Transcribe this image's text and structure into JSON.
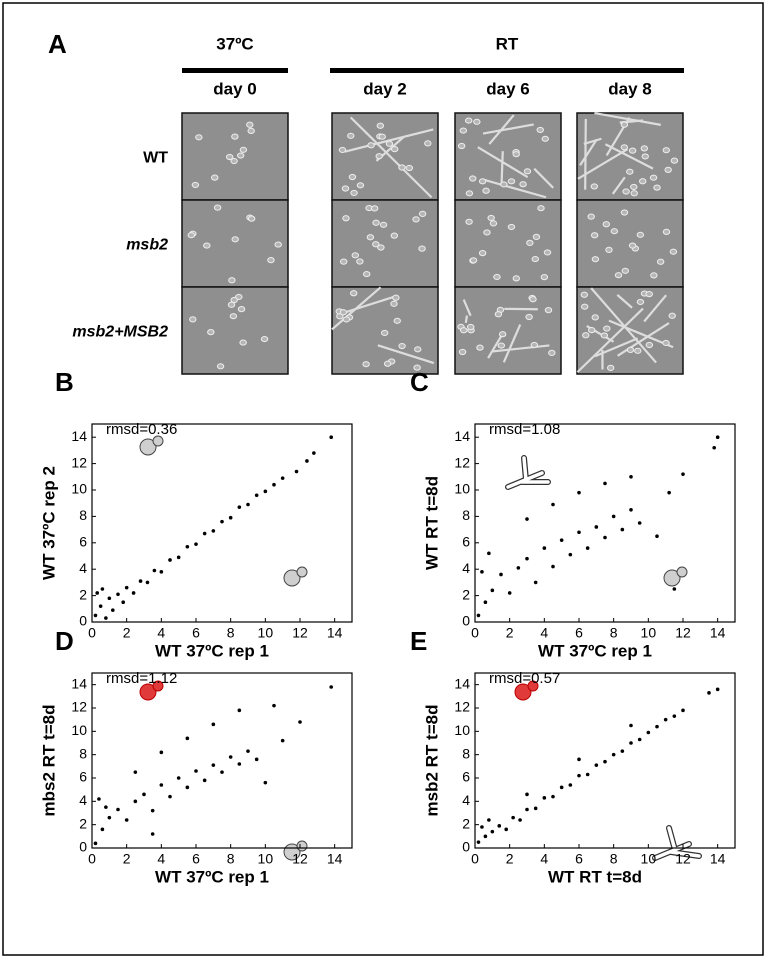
{
  "panel_a": {
    "label": "A",
    "groups": [
      "37ºC",
      "RT"
    ],
    "columns": [
      "day 0",
      "day 2",
      "day 6",
      "day 8"
    ],
    "rows": [
      "WT",
      "msb2",
      "msb2+MSB2"
    ]
  },
  "chart_data": [
    {
      "type": "scatter",
      "label": "B",
      "annotation": "rmsd=0.36",
      "x_label": "WT 37ºC rep 1",
      "y_label": "WT 37ºC rep 2",
      "xlim": [
        0,
        15
      ],
      "ylim": [
        0,
        15
      ],
      "xticks": [
        0,
        2,
        4,
        6,
        8,
        10,
        12,
        14
      ],
      "yticks": [
        0,
        2,
        4,
        6,
        8,
        10,
        12,
        14
      ],
      "color": "#000000",
      "x": [
        0.2,
        0.3,
        0.5,
        0.6,
        0.8,
        1.0,
        1.2,
        1.5,
        1.8,
        2.0,
        2.4,
        2.8,
        3.2,
        3.6,
        4.0,
        4.5,
        5.0,
        5.5,
        6.0,
        6.5,
        7.0,
        7.5,
        8.0,
        8.5,
        9.0,
        9.5,
        10.0,
        10.5,
        11.0,
        11.8,
        12.4,
        12.8,
        13.8
      ],
      "y": [
        0.5,
        2.2,
        1.2,
        2.5,
        0.3,
        1.8,
        0.9,
        2.1,
        1.5,
        2.6,
        2.2,
        3.1,
        3.0,
        3.9,
        3.8,
        4.7,
        4.9,
        5.7,
        5.9,
        6.7,
        6.9,
        7.6,
        7.9,
        8.7,
        8.9,
        9.6,
        9.9,
        10.4,
        10.9,
        11.4,
        12.2,
        12.8,
        14.0
      ]
    },
    {
      "type": "scatter",
      "label": "C",
      "annotation": "rmsd=1.08",
      "x_label": "WT 37ºC rep 1",
      "y_label": "WT RT  t=8d",
      "xlim": [
        0,
        15
      ],
      "ylim": [
        0,
        15
      ],
      "xticks": [
        0,
        2,
        4,
        6,
        8,
        10,
        12,
        14
      ],
      "yticks": [
        0,
        2,
        4,
        6,
        8,
        10,
        12,
        14
      ],
      "color": "#000000",
      "x": [
        0.2,
        0.4,
        0.6,
        0.8,
        1.0,
        1.5,
        2.0,
        2.5,
        3.0,
        3.5,
        4.0,
        4.5,
        5.0,
        5.5,
        6.0,
        6.5,
        7.0,
        7.5,
        8.0,
        8.5,
        9.0,
        9.5,
        3.0,
        4.5,
        6.0,
        7.5,
        9.0,
        10.5,
        11.2,
        12.0,
        14.0,
        13.8,
        11.5
      ],
      "y": [
        0.5,
        3.8,
        1.5,
        5.2,
        2.4,
        3.6,
        2.2,
        4.1,
        4.8,
        3.0,
        5.6,
        4.2,
        6.2,
        5.1,
        6.8,
        5.6,
        7.2,
        6.4,
        8.0,
        7.0,
        8.5,
        7.5,
        7.8,
        8.9,
        9.8,
        10.5,
        11.0,
        6.5,
        9.8,
        11.2,
        14.0,
        13.2,
        2.5
      ]
    },
    {
      "type": "scatter",
      "label": "D",
      "annotation": "rmsd=1.12",
      "x_label": "WT 37ºC rep 1",
      "y_label": "mbs2 RT  t=8d",
      "xlim": [
        0,
        15
      ],
      "ylim": [
        0,
        15
      ],
      "xticks": [
        0,
        2,
        4,
        6,
        8,
        10,
        12,
        14
      ],
      "yticks": [
        0,
        2,
        4,
        6,
        8,
        10,
        12,
        14
      ],
      "color": "#000000",
      "x": [
        0.2,
        0.4,
        0.6,
        0.8,
        1.0,
        1.5,
        2.0,
        2.5,
        3.0,
        3.5,
        4.0,
        4.5,
        5.0,
        5.5,
        6.0,
        6.5,
        7.0,
        7.5,
        8.0,
        8.5,
        9.0,
        9.5,
        2.5,
        4.0,
        5.5,
        7.0,
        8.5,
        10.0,
        11.0,
        12.0,
        13.8,
        10.5,
        3.5
      ],
      "y": [
        0.4,
        4.2,
        1.6,
        3.5,
        2.6,
        3.3,
        2.4,
        4.0,
        4.6,
        3.2,
        5.4,
        4.4,
        6.0,
        5.2,
        6.6,
        5.8,
        7.1,
        6.5,
        7.8,
        7.2,
        8.3,
        7.6,
        6.5,
        8.2,
        9.4,
        10.6,
        11.8,
        5.6,
        9.2,
        10.8,
        13.8,
        12.2,
        1.2
      ]
    },
    {
      "type": "scatter",
      "label": "E",
      "annotation": "rmsd=0.57",
      "x_label": "WT RT t=8d",
      "y_label": "msb2 RT  t=8d",
      "xlim": [
        0,
        15
      ],
      "ylim": [
        0,
        15
      ],
      "xticks": [
        0,
        2,
        4,
        6,
        8,
        10,
        12,
        14
      ],
      "yticks": [
        0,
        2,
        4,
        6,
        8,
        10,
        12,
        14
      ],
      "color": "#000000",
      "x": [
        0.2,
        0.4,
        0.6,
        0.8,
        1.0,
        1.4,
        1.8,
        2.2,
        2.6,
        3.0,
        3.5,
        4.0,
        4.5,
        5.0,
        5.5,
        6.0,
        6.5,
        7.0,
        7.5,
        8.0,
        8.5,
        9.0,
        9.5,
        10.0,
        10.5,
        11.0,
        11.5,
        12.0,
        13.5,
        14.0,
        9.0,
        6.0,
        3.0
      ],
      "y": [
        0.5,
        1.8,
        1.0,
        2.4,
        1.4,
        1.9,
        1.6,
        2.6,
        2.4,
        3.3,
        3.4,
        4.3,
        4.4,
        5.2,
        5.4,
        6.2,
        6.3,
        7.1,
        7.4,
        8.0,
        8.3,
        9.0,
        9.3,
        9.9,
        10.4,
        11.0,
        11.3,
        11.8,
        13.3,
        13.6,
        10.5,
        7.6,
        4.6
      ]
    }
  ]
}
